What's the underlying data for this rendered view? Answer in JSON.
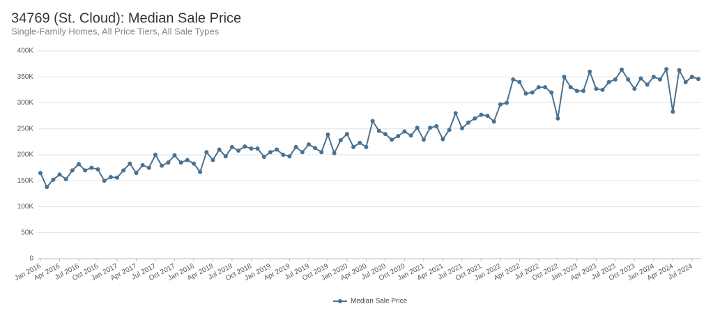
{
  "chart_data": {
    "type": "line",
    "title": "34769 (St. Cloud): Median Sale Price",
    "subtitle": "Single-Family Homes, All Price Tiers, All Sale Types",
    "categories": [
      "Jan 2016",
      null,
      null,
      "Apr 2016",
      null,
      null,
      "Jul 2016",
      null,
      null,
      "Oct 2016",
      null,
      null,
      "Jan 2017",
      null,
      null,
      "Apr 2017",
      null,
      null,
      "Jul 2017",
      null,
      null,
      "Oct 2017",
      null,
      null,
      "Jan 2018",
      null,
      null,
      "Apr 2018",
      null,
      null,
      "Jul 2018",
      null,
      null,
      "Oct 2018",
      null,
      null,
      "Jan 2019",
      null,
      null,
      "Apr 2019",
      null,
      null,
      "Jul 2019",
      null,
      null,
      "Oct 2019",
      null,
      null,
      "Jan 2020",
      null,
      null,
      "Apr 2020",
      null,
      null,
      "Jul 2020",
      null,
      null,
      "Oct 2020",
      null,
      null,
      "Jan 2021",
      null,
      null,
      "Apr 2021",
      null,
      null,
      "Jul 2021",
      null,
      null,
      "Oct 2021",
      null,
      null,
      "Jan 2022",
      null,
      null,
      "Apr 2022",
      null,
      null,
      "Jul 2022",
      null,
      null,
      "Oct 2022",
      null,
      null,
      "Jan 2023",
      null,
      null,
      "Apr 2023",
      null,
      null,
      "Jul 2023",
      null,
      null,
      "Oct 2023",
      null,
      null,
      "Jan 2024",
      null,
      null,
      "Apr 2024",
      null,
      null,
      "Jul 2024",
      null
    ],
    "series": [
      {
        "name": "Median Sale Price",
        "color": "#4a7190",
        "values": [
          165000,
          138000,
          152000,
          162000,
          153000,
          170000,
          182000,
          170000,
          175000,
          172000,
          150000,
          157000,
          156000,
          170000,
          183000,
          165000,
          180000,
          175000,
          200000,
          179000,
          185000,
          199000,
          185000,
          190000,
          183000,
          167000,
          205000,
          190000,
          210000,
          197000,
          215000,
          208000,
          216000,
          212000,
          212000,
          196000,
          205000,
          210000,
          200000,
          197000,
          215000,
          205000,
          220000,
          213000,
          205000,
          239000,
          203000,
          228000,
          240000,
          215000,
          223000,
          215000,
          265000,
          246000,
          240000,
          229000,
          236000,
          245000,
          237000,
          252000,
          229000,
          252000,
          255000,
          230000,
          248000,
          280000,
          251000,
          262000,
          270000,
          277000,
          275000,
          264000,
          297000,
          300000,
          345000,
          340000,
          318000,
          320000,
          330000,
          330000,
          320000,
          270000,
          350000,
          330000,
          323000,
          323000,
          360000,
          327000,
          325000,
          340000,
          345000,
          364000,
          345000,
          327000,
          347000,
          335000,
          350000,
          345000,
          365000,
          283000,
          363000,
          340000,
          350000,
          346000
        ]
      }
    ],
    "ylim": [
      0,
      400000
    ],
    "yticks": [
      0,
      {
        "value": 50000,
        "label": "50K"
      },
      {
        "value": 100000,
        "label": "100K"
      },
      {
        "value": 150000,
        "label": "150K"
      },
      {
        "value": 200000,
        "label": "200K"
      },
      {
        "value": 250000,
        "label": "250K"
      },
      {
        "value": 300000,
        "label": "300K"
      },
      {
        "value": 350000,
        "label": "350K"
      },
      {
        "value": 400000,
        "label": "400K"
      }
    ],
    "grid": true,
    "legend": "bottom"
  }
}
